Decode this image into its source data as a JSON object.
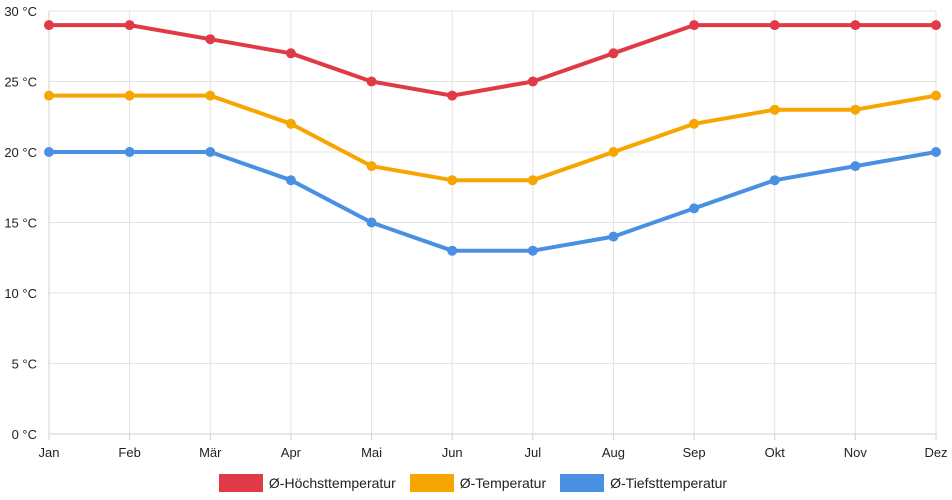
{
  "chart_data": {
    "type": "line",
    "categories": [
      "Jan",
      "Feb",
      "Mär",
      "Apr",
      "Mai",
      "Jun",
      "Jul",
      "Aug",
      "Sep",
      "Okt",
      "Nov",
      "Dez"
    ],
    "y_ticks": [
      0,
      5,
      10,
      15,
      20,
      25,
      30
    ],
    "y_unit": "°C",
    "ylim": [
      0,
      30
    ],
    "grid": true,
    "legend_position": "bottom",
    "series": [
      {
        "name": "Ø-Höchsttemperatur",
        "color": "#e03a46",
        "values": [
          29,
          29,
          28,
          27,
          25,
          24,
          25,
          27,
          29,
          29,
          29,
          29
        ]
      },
      {
        "name": "Ø-Temperatur",
        "color": "#f7a500",
        "values": [
          24,
          24,
          24,
          22,
          19,
          18,
          18,
          20,
          22,
          23,
          23,
          24
        ]
      },
      {
        "name": "Ø-Tiefsttemperatur",
        "color": "#4a90e2",
        "values": [
          20,
          20,
          20,
          18,
          15,
          13,
          13,
          14,
          16,
          18,
          19,
          20
        ]
      }
    ]
  }
}
